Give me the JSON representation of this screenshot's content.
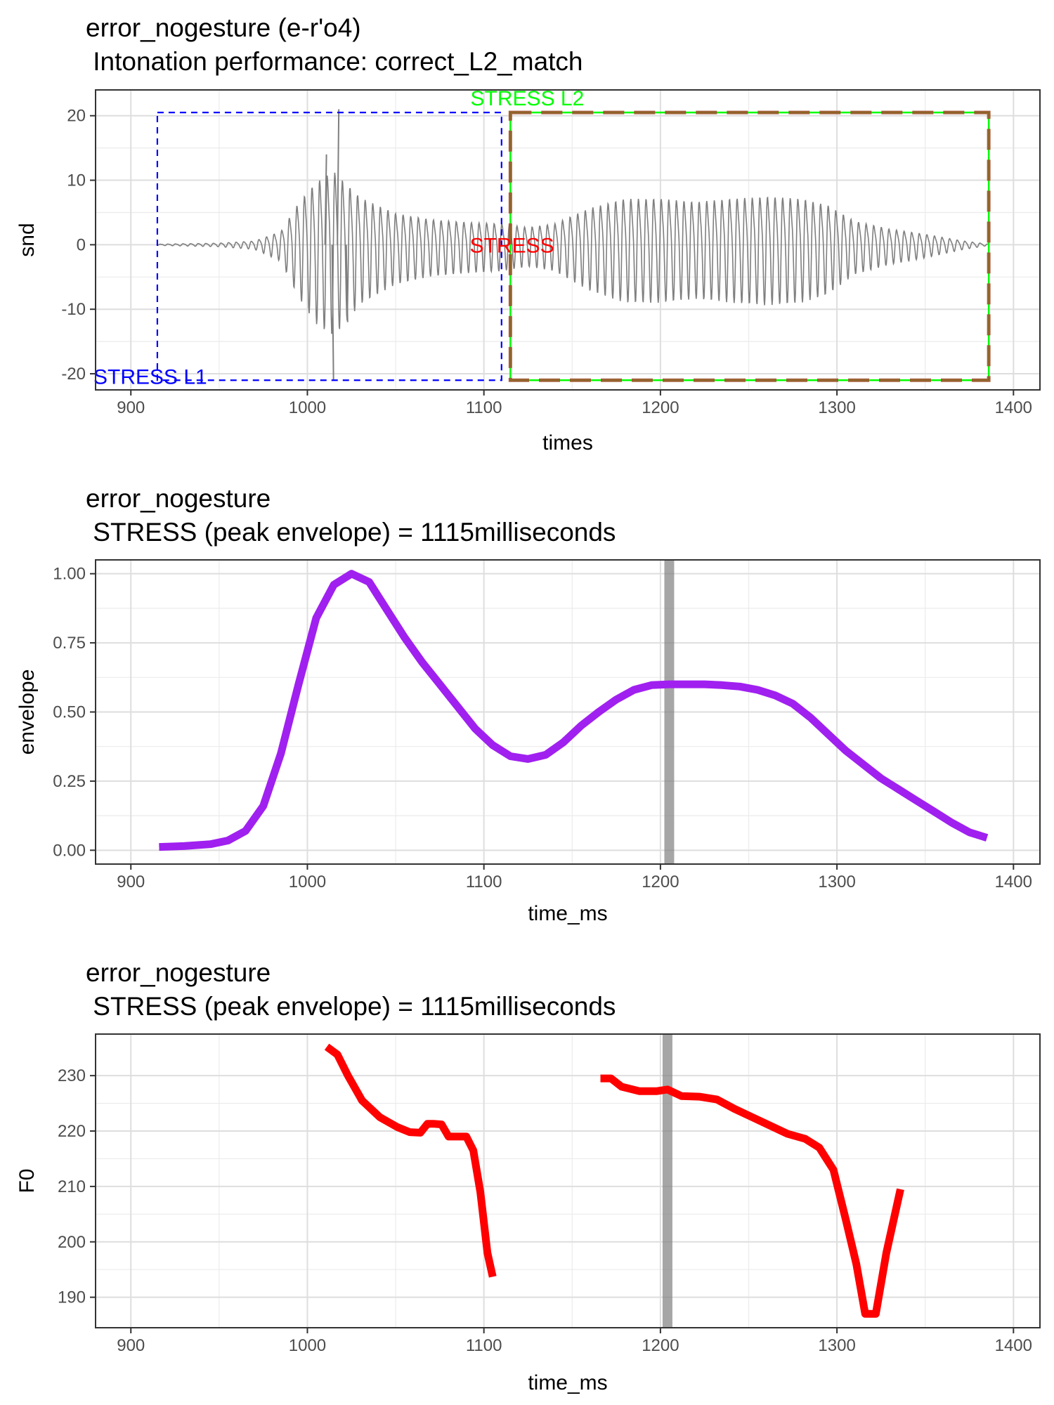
{
  "chart_data": [
    {
      "type": "line",
      "title": "error_nogesture  (e-r'o4)",
      "subtitle": " Intonation performance: correct_L2_match",
      "xlabel": "times",
      "ylabel": "snd",
      "xlim": [
        880,
        1415
      ],
      "ylim": [
        -22.5,
        24
      ],
      "xticks": [
        900,
        1000,
        1100,
        1200,
        1300,
        1400
      ],
      "yticks": [
        -20,
        -10,
        0,
        10,
        20
      ],
      "grid": true,
      "series": [
        {
          "color": "#7f7f7f",
          "kind": "waveform",
          "envelope": [
            [
              915,
              0.1
            ],
            [
              950,
              0.3
            ],
            [
              970,
              0.7
            ],
            [
              985,
              2.5
            ],
            [
              995,
              8
            ],
            [
              1005,
              12
            ],
            [
              1015,
              14
            ],
            [
              1030,
              9
            ],
            [
              1050,
              6
            ],
            [
              1070,
              4.8
            ],
            [
              1090,
              4.3
            ],
            [
              1110,
              4
            ],
            [
              1125,
              3.3
            ],
            [
              1140,
              4
            ],
            [
              1160,
              7
            ],
            [
              1180,
              8.8
            ],
            [
              1200,
              8.8
            ],
            [
              1220,
              8.2
            ],
            [
              1240,
              8.8
            ],
            [
              1260,
              9.2
            ],
            [
              1280,
              8.8
            ],
            [
              1295,
              7.5
            ],
            [
              1310,
              4.5
            ],
            [
              1330,
              3
            ],
            [
              1350,
              2
            ],
            [
              1370,
              0.8
            ],
            [
              1386,
              0.1
            ]
          ],
          "peaks": [
            {
              "x": 1017,
              "y": 21
            },
            {
              "x": 1014,
              "y": -21
            },
            {
              "x": 1022,
              "y": -12
            },
            {
              "x": 1010,
              "y": 14
            }
          ]
        }
      ],
      "annotations": [
        {
          "label": "STRESS L2",
          "color": "#00ff00",
          "x": 1090,
          "y": 21.8,
          "xmin": 1115,
          "xmax": 1386,
          "ymin": -21,
          "ymax": 20.5
        },
        {
          "label": "STRESS",
          "color": "#ff0000",
          "x": 1090,
          "y": 0,
          "xmin": 1115,
          "xmax": 1386,
          "ymin": -21,
          "ymax": 20.5
        },
        {
          "label": "STRESS L1",
          "color": "#0000ff",
          "x": 890,
          "y": -20.5,
          "xmin": 915,
          "xmax": 1110,
          "ymin": -21,
          "ymax": 20.5
        }
      ]
    },
    {
      "type": "line",
      "title": "error_nogesture",
      "subtitle": " STRESS (peak envelope) = 1115milliseconds",
      "xlabel": "time_ms",
      "ylabel": "envelope",
      "xlim": [
        880,
        1415
      ],
      "ylim": [
        -0.05,
        1.05
      ],
      "xticks": [
        900,
        1000,
        1100,
        1200,
        1300,
        1400
      ],
      "yticks": [
        0,
        0.25,
        0.5,
        0.75,
        1
      ],
      "ytick_labels": [
        "0.00",
        "0.25",
        "0.50",
        "0.75",
        "1.00"
      ],
      "grid": true,
      "vline": {
        "x": 1205,
        "color": "#808080"
      },
      "series": [
        {
          "color": "#a020f0",
          "x": [
            916,
            930,
            945,
            955,
            965,
            975,
            985,
            995,
            1005,
            1015,
            1025,
            1035,
            1045,
            1055,
            1065,
            1075,
            1085,
            1095,
            1105,
            1115,
            1125,
            1135,
            1145,
            1155,
            1165,
            1175,
            1185,
            1195,
            1205,
            1215,
            1225,
            1235,
            1245,
            1255,
            1265,
            1275,
            1285,
            1295,
            1305,
            1315,
            1325,
            1335,
            1345,
            1355,
            1365,
            1375,
            1385
          ],
          "y": [
            0.012,
            0.015,
            0.022,
            0.035,
            0.07,
            0.16,
            0.35,
            0.6,
            0.84,
            0.96,
            1.0,
            0.97,
            0.87,
            0.77,
            0.68,
            0.6,
            0.52,
            0.44,
            0.38,
            0.34,
            0.33,
            0.345,
            0.39,
            0.45,
            0.5,
            0.545,
            0.58,
            0.597,
            0.6,
            0.6,
            0.6,
            0.597,
            0.592,
            0.58,
            0.56,
            0.53,
            0.48,
            0.42,
            0.36,
            0.31,
            0.26,
            0.22,
            0.18,
            0.14,
            0.1,
            0.065,
            0.045
          ]
        }
      ]
    },
    {
      "type": "line",
      "title": "error_nogesture",
      "subtitle": " STRESS (peak envelope) = 1115milliseconds",
      "xlabel": "time_ms",
      "ylabel": "F0",
      "xlim": [
        880,
        1415
      ],
      "ylim": [
        184.5,
        237.5
      ],
      "xticks": [
        900,
        1000,
        1100,
        1200,
        1300,
        1400
      ],
      "yticks": [
        190,
        200,
        210,
        220,
        230
      ],
      "grid": true,
      "vline": {
        "x": 1204,
        "color": "#808080"
      },
      "series": [
        {
          "color": "#ff0000",
          "segments": [
            {
              "x": [
                1011,
                1017,
                1023,
                1031,
                1041,
                1051,
                1058,
                1064,
                1068,
                1072,
                1076,
                1080,
                1085,
                1090,
                1094,
                1098,
                1102,
                1105
              ],
              "y": [
                235.2,
                233.8,
                230,
                225.5,
                222.5,
                220.7,
                219.8,
                219.7,
                221.3,
                221.3,
                221.2,
                219,
                219,
                219,
                216.5,
                209,
                198,
                193.7
              ]
            },
            {
              "x": [
                1166,
                1172,
                1178,
                1188,
                1198,
                1204,
                1212,
                1222,
                1232,
                1242,
                1252,
                1262,
                1272,
                1282,
                1290,
                1298,
                1305,
                1311,
                1316,
                1322,
                1328,
                1336
              ],
              "y": [
                229.5,
                229.5,
                228,
                227.2,
                227.2,
                227.5,
                226.3,
                226.2,
                225.7,
                224,
                222.5,
                221,
                219.5,
                218.6,
                217,
                213,
                204,
                196,
                187,
                187,
                198,
                209.5
              ]
            }
          ]
        }
      ]
    }
  ]
}
